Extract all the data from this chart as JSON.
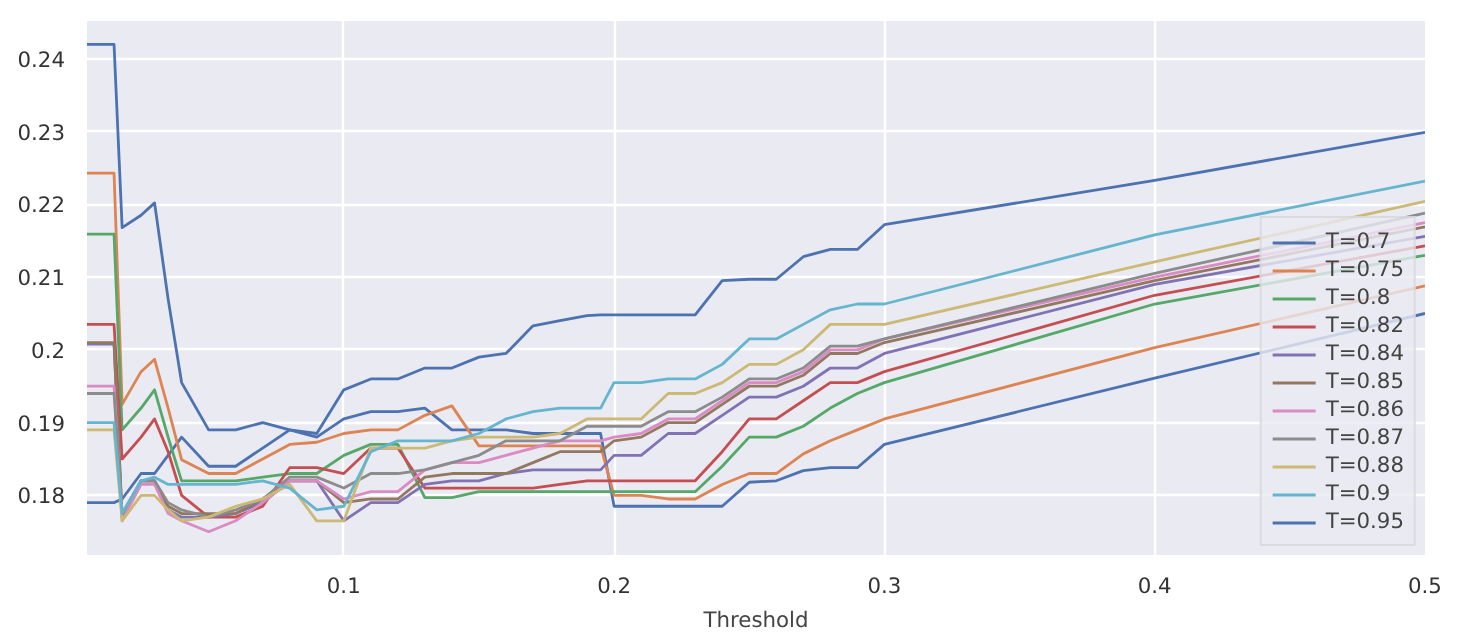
{
  "chart_data": {
    "type": "line",
    "xlabel": "Threshold",
    "x": [
      0.005,
      0.015,
      0.018,
      0.025,
      0.03,
      0.035,
      0.04,
      0.05,
      0.06,
      0.07,
      0.08,
      0.09,
      0.1,
      0.11,
      0.12,
      0.13,
      0.14,
      0.15,
      0.16,
      0.17,
      0.18,
      0.19,
      0.195,
      0.2,
      0.21,
      0.22,
      0.23,
      0.24,
      0.25,
      0.26,
      0.27,
      0.28,
      0.29,
      0.3,
      0.4,
      0.5
    ],
    "xlim": [
      0.005,
      0.5
    ],
    "xticks": [
      0.1,
      0.2,
      0.3,
      0.4,
      0.5
    ],
    "ylim": [
      0.1718,
      0.2452
    ],
    "yticks": [
      0.18,
      0.19,
      0.2,
      0.21,
      0.22,
      0.23,
      0.24
    ],
    "grid": true,
    "legend": "bottom right",
    "line_style": "solid",
    "marker": "none",
    "series": [
      {
        "name": "T=0.7",
        "color": "#4c72b0",
        "values": [
          0.179,
          0.179,
          0.1795,
          0.183,
          0.183,
          0.1855,
          0.188,
          0.184,
          0.184,
          0.1865,
          0.189,
          0.188,
          0.1905,
          0.1915,
          0.1915,
          0.192,
          0.189,
          0.189,
          0.189,
          0.1885,
          0.1885,
          0.1885,
          0.1885,
          0.1785,
          0.1785,
          0.1785,
          0.1785,
          0.1785,
          0.1818,
          0.182,
          0.1834,
          0.1838,
          0.1838,
          0.187,
          0.1961,
          0.205
        ]
      },
      {
        "name": "T=0.75",
        "color": "#dd8452",
        "values": [
          0.2243,
          0.2243,
          0.1925,
          0.197,
          0.1987,
          0.192,
          0.1849,
          0.183,
          0.183,
          0.185,
          0.187,
          0.1873,
          0.1885,
          0.189,
          0.189,
          0.191,
          0.1923,
          0.1868,
          0.1868,
          0.1868,
          0.1868,
          0.1868,
          0.1868,
          0.18,
          0.18,
          0.1795,
          0.1795,
          0.1815,
          0.183,
          0.183,
          0.1857,
          0.1875,
          0.189,
          0.1905,
          0.2003,
          0.2088
        ]
      },
      {
        "name": "T=0.8",
        "color": "#55a868",
        "values": [
          0.2159,
          0.2159,
          0.189,
          0.192,
          0.1945,
          0.188,
          0.182,
          0.182,
          0.182,
          0.1825,
          0.183,
          0.183,
          0.1855,
          0.187,
          0.187,
          0.1797,
          0.1797,
          0.1805,
          0.1805,
          0.1805,
          0.1805,
          0.1805,
          0.1805,
          0.1805,
          0.1805,
          0.1805,
          0.1805,
          0.184,
          0.188,
          0.188,
          0.1895,
          0.192,
          0.194,
          0.1955,
          0.2063,
          0.213
        ]
      },
      {
        "name": "T=0.82",
        "color": "#c44e52",
        "values": [
          0.2035,
          0.2035,
          0.185,
          0.188,
          0.1905,
          0.186,
          0.18,
          0.177,
          0.177,
          0.1785,
          0.1838,
          0.1838,
          0.183,
          0.1865,
          0.1865,
          0.181,
          0.181,
          0.181,
          0.181,
          0.181,
          0.1815,
          0.182,
          0.182,
          0.182,
          0.182,
          0.182,
          0.182,
          0.186,
          0.1905,
          0.1905,
          0.193,
          0.1955,
          0.1955,
          0.197,
          0.2075,
          0.2143
        ]
      },
      {
        "name": "T=0.84",
        "color": "#8172b3",
        "values": [
          0.2008,
          0.2008,
          0.177,
          0.182,
          0.182,
          0.178,
          0.177,
          0.177,
          0.1775,
          0.179,
          0.182,
          0.182,
          0.1765,
          0.179,
          0.179,
          0.1815,
          0.182,
          0.182,
          0.183,
          0.1835,
          0.1835,
          0.1835,
          0.1835,
          0.1855,
          0.1855,
          0.1885,
          0.1885,
          0.191,
          0.1935,
          0.1935,
          0.195,
          0.1975,
          0.1975,
          0.1995,
          0.209,
          0.2156
        ]
      },
      {
        "name": "T=0.85",
        "color": "#937860",
        "values": [
          0.201,
          0.201,
          0.177,
          0.182,
          0.182,
          0.1785,
          0.1775,
          0.1775,
          0.1775,
          0.1795,
          0.182,
          0.182,
          0.179,
          0.1795,
          0.1795,
          0.1825,
          0.183,
          0.183,
          0.183,
          0.1845,
          0.186,
          0.186,
          0.186,
          0.1875,
          0.188,
          0.19,
          0.19,
          0.1925,
          0.195,
          0.195,
          0.1965,
          0.1995,
          0.1995,
          0.201,
          0.2095,
          0.2169
        ]
      },
      {
        "name": "T=0.86",
        "color": "#da8bc3",
        "values": [
          0.195,
          0.195,
          0.1765,
          0.1815,
          0.1815,
          0.1775,
          0.1765,
          0.175,
          0.1765,
          0.179,
          0.182,
          0.182,
          0.1795,
          0.1805,
          0.1805,
          0.1835,
          0.1845,
          0.1845,
          0.1855,
          0.1865,
          0.1875,
          0.1875,
          0.1875,
          0.188,
          0.1885,
          0.1905,
          0.1905,
          0.193,
          0.1955,
          0.1955,
          0.197,
          0.2,
          0.2,
          0.2015,
          0.21,
          0.2175
        ]
      },
      {
        "name": "T=0.87",
        "color": "#8c8c8c",
        "values": [
          0.194,
          0.194,
          0.1775,
          0.182,
          0.182,
          0.179,
          0.178,
          0.177,
          0.178,
          0.1795,
          0.1825,
          0.1825,
          0.181,
          0.183,
          0.183,
          0.1835,
          0.1845,
          0.1855,
          0.1875,
          0.1875,
          0.1875,
          0.1895,
          0.1895,
          0.1895,
          0.1895,
          0.1915,
          0.1915,
          0.1935,
          0.196,
          0.196,
          0.1975,
          0.2005,
          0.2005,
          0.2015,
          0.2105,
          0.2188
        ]
      },
      {
        "name": "T=0.88",
        "color": "#ccb974",
        "values": [
          0.189,
          0.189,
          0.1765,
          0.18,
          0.18,
          0.178,
          0.1765,
          0.177,
          0.1785,
          0.1795,
          0.1815,
          0.1765,
          0.1765,
          0.1865,
          0.1865,
          0.1865,
          0.1875,
          0.188,
          0.188,
          0.188,
          0.1885,
          0.1905,
          0.1905,
          0.1905,
          0.1905,
          0.194,
          0.194,
          0.1955,
          0.198,
          0.198,
          0.2,
          0.2035,
          0.2035,
          0.2035,
          0.2121,
          0.2204
        ]
      },
      {
        "name": "T=0.9",
        "color": "#64b5cd",
        "values": [
          0.19,
          0.19,
          0.1775,
          0.182,
          0.1825,
          0.1815,
          0.1815,
          0.1815,
          0.1815,
          0.182,
          0.181,
          0.178,
          0.1785,
          0.186,
          0.1875,
          0.1875,
          0.1875,
          0.1885,
          0.1905,
          0.1915,
          0.192,
          0.192,
          0.192,
          0.1955,
          0.1955,
          0.196,
          0.196,
          0.198,
          0.2015,
          0.2015,
          0.2035,
          0.2055,
          0.2063,
          0.2063,
          0.2158,
          0.2232
        ]
      },
      {
        "name": "T=0.95",
        "color": "#4c72b0",
        "values": [
          0.242,
          0.242,
          0.2168,
          0.2185,
          0.2202,
          0.207,
          0.1955,
          0.189,
          0.189,
          0.19,
          0.189,
          0.1885,
          0.1945,
          0.196,
          0.196,
          0.1975,
          0.1975,
          0.199,
          0.1995,
          0.2033,
          0.204,
          0.2047,
          0.2048,
          0.2048,
          0.2048,
          0.2048,
          0.2048,
          0.2095,
          0.2097,
          0.2097,
          0.2128,
          0.2138,
          0.2138,
          0.2172,
          0.2233,
          0.2299
        ]
      }
    ]
  }
}
